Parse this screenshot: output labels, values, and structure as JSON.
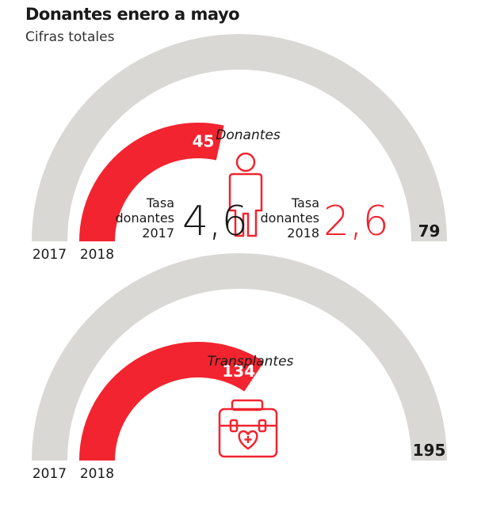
{
  "header": {
    "title": "Donantes enero a mayo",
    "subtitle": "Cifras totales"
  },
  "colors": {
    "accent": "#f2242f",
    "track": "#d9d8d5",
    "text": "#1a1a1a"
  },
  "rates": {
    "label_2017": [
      "Tasa",
      "donantes",
      "2017"
    ],
    "value_2017": "4,6",
    "label_2018": [
      "Tasa",
      "donantes",
      "2018"
    ],
    "value_2018": "2,6"
  },
  "icons": {
    "donor": "person-outline-icon",
    "transplant": "medical-case-heart-icon"
  },
  "chart_data": [
    {
      "type": "radial-bar",
      "title": "Donantes",
      "categories": [
        "2017",
        "2018"
      ],
      "values": [
        79,
        45
      ],
      "labels": [
        "79",
        "45"
      ]
    },
    {
      "type": "radial-bar",
      "title": "Transplantes",
      "categories": [
        "2017",
        "2018"
      ],
      "values": [
        195,
        134
      ],
      "labels": [
        "195",
        "134"
      ]
    }
  ]
}
